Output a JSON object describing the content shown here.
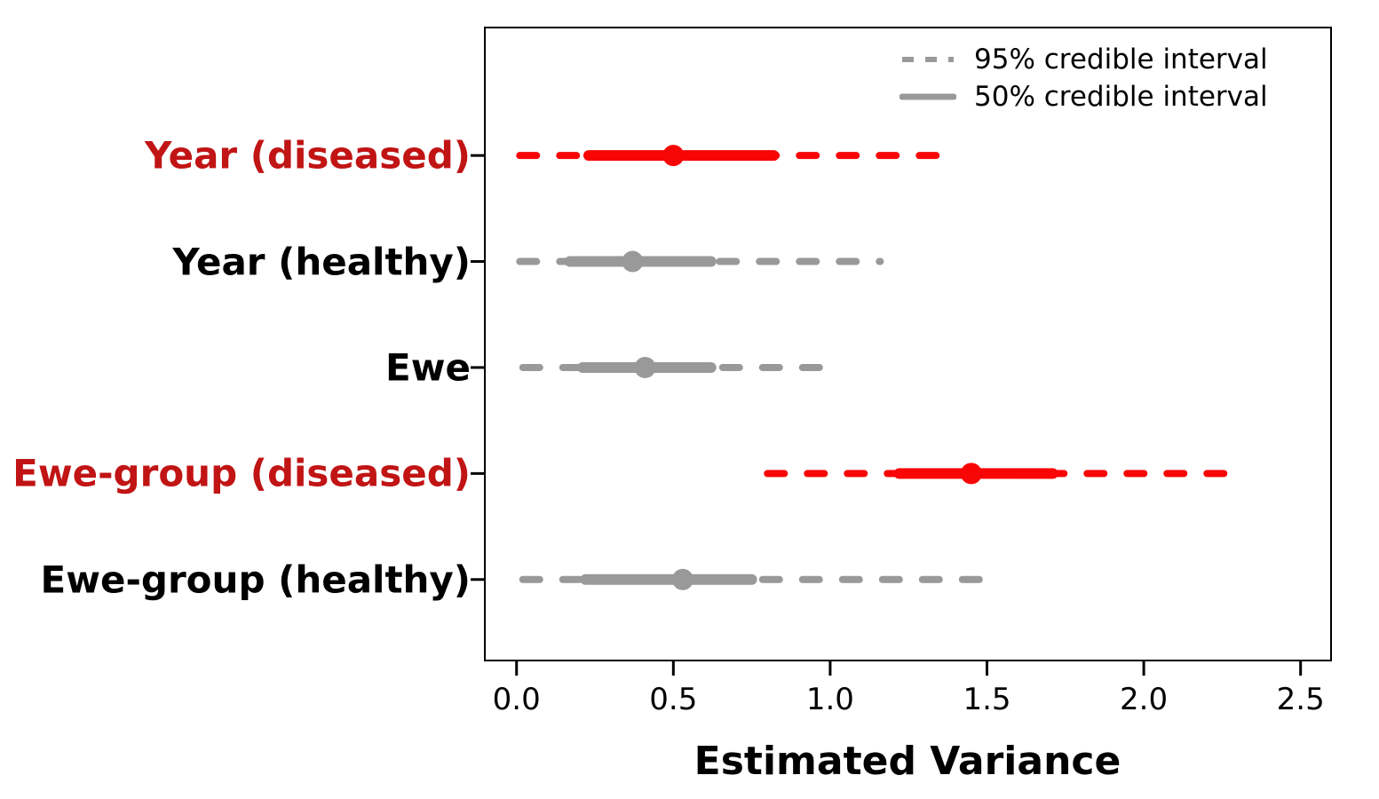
{
  "chart_data": {
    "type": "interval_dot",
    "title": "",
    "xlabel": "Estimated Variance",
    "xlim": [
      -0.104,
      2.6
    ],
    "xticks": [
      0.0,
      0.5,
      1.0,
      1.5,
      2.0,
      2.5
    ],
    "xtick_labels": [
      "0.0",
      "0.5",
      "1.0",
      "1.5",
      "2.0",
      "2.5"
    ],
    "grid": false,
    "legend_position": "top-right",
    "legend": [
      {
        "label": "95% credible interval",
        "style": "dashed"
      },
      {
        "label": "50% credible interval",
        "style": "solid"
      }
    ],
    "rows": [
      {
        "label": "Year (diseased)",
        "color_key": "red",
        "ci95": [
          0.01,
          1.39
        ],
        "ci50": [
          0.23,
          0.82
        ],
        "median": 0.5
      },
      {
        "label": "Year (healthy)",
        "color_key": "gray",
        "ci95": [
          0.01,
          1.16
        ],
        "ci50": [
          0.17,
          0.62
        ],
        "median": 0.37
      },
      {
        "label": "Ewe",
        "color_key": "gray",
        "ci95": [
          0.02,
          1.02
        ],
        "ci50": [
          0.21,
          0.62
        ],
        "median": 0.41
      },
      {
        "label": "Ewe-group (diseased)",
        "color_key": "red",
        "ci95": [
          0.8,
          2.3
        ],
        "ci50": [
          1.22,
          1.71
        ],
        "median": 1.45
      },
      {
        "label": "Ewe-group (healthy)",
        "color_key": "gray",
        "ci95": [
          0.02,
          1.52
        ],
        "ci50": [
          0.22,
          0.75
        ],
        "median": 0.53
      }
    ],
    "colors": {
      "red_line": "#F80606",
      "red_label": "#C11414",
      "gray_line": "#999999",
      "black_label": "#000000",
      "axis": "#000000"
    }
  }
}
